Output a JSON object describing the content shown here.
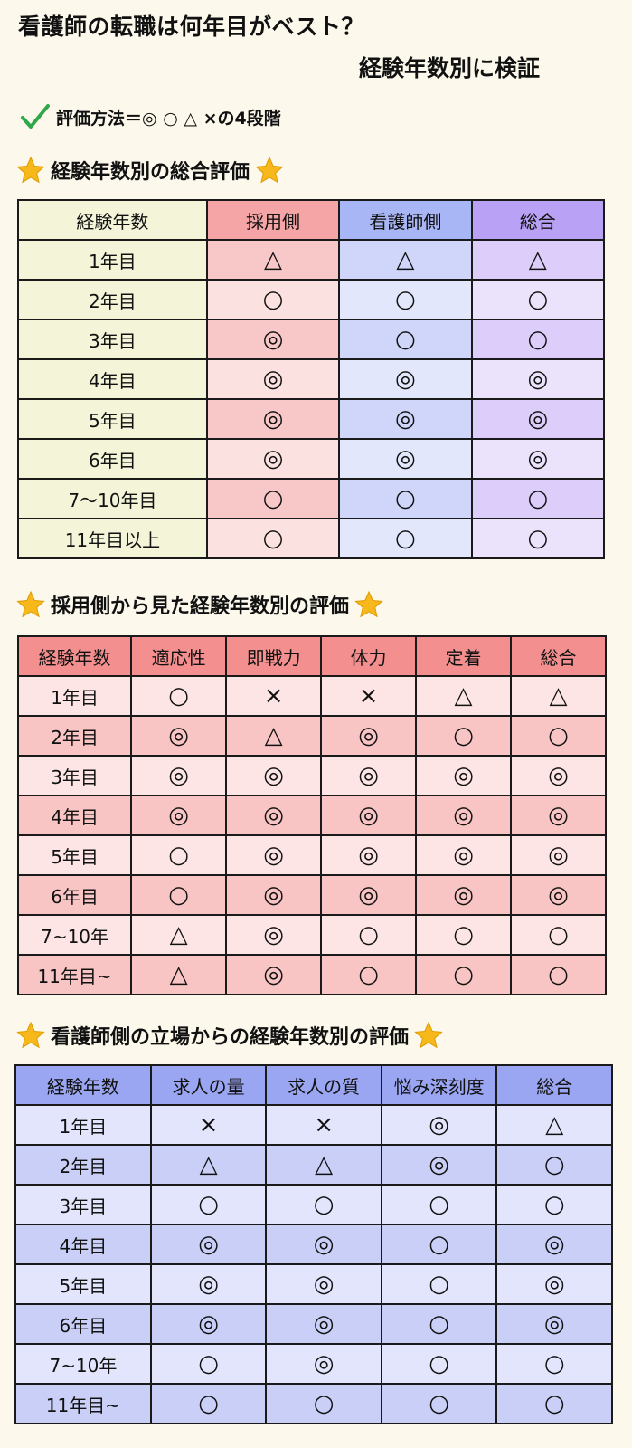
{
  "header": {
    "title_line1": "看護師の転職は何年目がベスト？",
    "title_line2": "経験年数別に検証",
    "method": "評価方法＝◎ ○ △ ×の4段階",
    "check_icon": "check-icon"
  },
  "table1": {
    "heading": "経験年数別の総合評価",
    "columns": [
      "経験年数",
      "採用側",
      "看護師側",
      "総合"
    ],
    "rows": [
      [
        "1年目",
        "△",
        "△",
        "△"
      ],
      [
        "2年目",
        "○",
        "○",
        "○"
      ],
      [
        "3年目",
        "◎",
        "○",
        "○"
      ],
      [
        "4年目",
        "◎",
        "◎",
        "◎"
      ],
      [
        "5年目",
        "◎",
        "◎",
        "◎"
      ],
      [
        "6年目",
        "◎",
        "◎",
        "◎"
      ],
      [
        "7〜10年目",
        "○",
        "○",
        "○"
      ],
      [
        "11年目以上",
        "○",
        "○",
        "○"
      ]
    ],
    "colors": {
      "header": [
        "#f4f4d8",
        "#f5a5a5",
        "#a9b6f5",
        "#b9a2f5"
      ],
      "odd": [
        "#f4f4d8",
        "#f8c8c8",
        "#cfd6f9",
        "#dccdfa"
      ],
      "even": [
        "#f4f4d8",
        "#fce1e1",
        "#e3e7fb",
        "#ebe2fc"
      ]
    }
  },
  "table2": {
    "heading": "採用側から見た経験年数別の評価",
    "columns": [
      "経験年数",
      "適応性",
      "即戦力",
      "体力",
      "定着",
      "総合"
    ],
    "rows": [
      [
        "1年目",
        "○",
        "×",
        "×",
        "△",
        "△"
      ],
      [
        "2年目",
        "◎",
        "△",
        "◎",
        "○",
        "○"
      ],
      [
        "3年目",
        "◎",
        "◎",
        "◎",
        "◎",
        "◎"
      ],
      [
        "4年目",
        "◎",
        "◎",
        "◎",
        "◎",
        "◎"
      ],
      [
        "5年目",
        "○",
        "◎",
        "◎",
        "◎",
        "◎"
      ],
      [
        "6年目",
        "○",
        "◎",
        "◎",
        "◎",
        "◎"
      ],
      [
        "7~10年",
        "△",
        "◎",
        "○",
        "○",
        "○"
      ],
      [
        "11年目~",
        "△",
        "◎",
        "○",
        "○",
        "○"
      ]
    ],
    "colors": {
      "header": "#f48f8f",
      "odd": "#fde5e5",
      "even": "#f8c4c4"
    }
  },
  "table3": {
    "heading": "看護師側の立場からの経験年数別の評価",
    "columns": [
      "経験年数",
      "求人の量",
      "求人の質",
      "悩み深刻度",
      "総合"
    ],
    "rows": [
      [
        "1年目",
        "×",
        "×",
        "◎",
        "△"
      ],
      [
        "2年目",
        "△",
        "△",
        "◎",
        "○"
      ],
      [
        "3年目",
        "○",
        "○",
        "○",
        "○"
      ],
      [
        "4年目",
        "◎",
        "◎",
        "○",
        "◎"
      ],
      [
        "5年目",
        "◎",
        "◎",
        "○",
        "◎"
      ],
      [
        "6年目",
        "◎",
        "◎",
        "○",
        "◎"
      ],
      [
        "7~10年",
        "○",
        "◎",
        "○",
        "○"
      ],
      [
        "11年目~",
        "○",
        "○",
        "○",
        "○"
      ]
    ],
    "colors": {
      "header": "#9aa6f2",
      "odd": "#e2e5fb",
      "even": "#c9cff7"
    }
  },
  "star_icon": "star-icon",
  "accent_star": "#f6b81a"
}
